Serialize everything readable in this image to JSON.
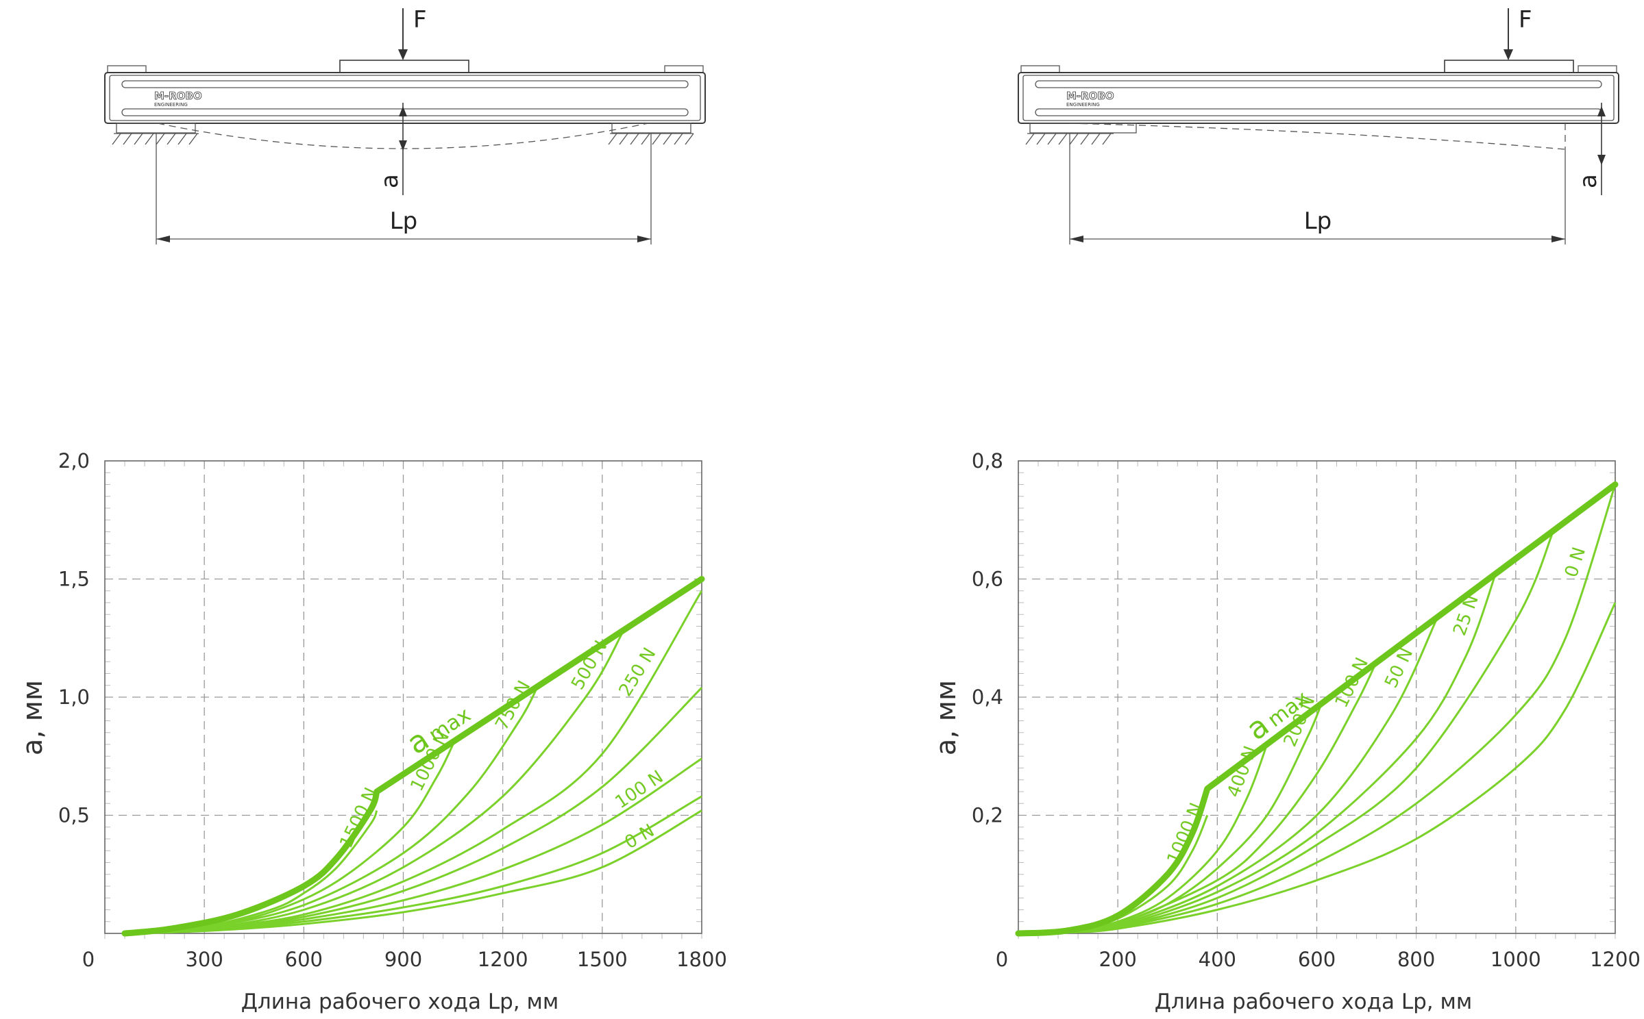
{
  "diagrams": [
    {
      "force_label": "F",
      "deflection_label": "a",
      "span_label": "Lp",
      "logo": "M-ROBO",
      "logo_sub": "ENGINEERING"
    },
    {
      "force_label": "F",
      "deflection_label": "a",
      "span_label": "Lp",
      "logo": "M-ROBO",
      "logo_sub": "ENGINEERING"
    }
  ],
  "colors": {
    "curve": "#7ad12a",
    "envelope": "#6cc61c",
    "grid": "#999999",
    "text": "#333333"
  },
  "chart_data": [
    {
      "type": "line",
      "xlabel": "Длина рабочего хода Lp, мм",
      "ylabel": "a, мм",
      "xlim": [
        0,
        1800
      ],
      "ylim": [
        0,
        2.0
      ],
      "xticks": [
        "0",
        "300",
        "600",
        "900",
        "1200",
        "1500",
        "1800"
      ],
      "yticks": [
        "0,5",
        "1,0",
        "1,5",
        "2,0"
      ],
      "grid": true,
      "envelope": {
        "name_main": "a",
        "name_sub": "max",
        "x": [
          60,
          200,
          400,
          600,
          700,
          800,
          820,
          1800
        ],
        "y": [
          0,
          0.02,
          0.08,
          0.2,
          0.32,
          0.52,
          0.6,
          1.5
        ]
      },
      "series": [
        {
          "name": "1500 N",
          "x": [
            60,
            300,
            500,
            600,
            700,
            800,
            820
          ],
          "y": [
            0,
            0.03,
            0.1,
            0.17,
            0.28,
            0.46,
            0.52
          ]
        },
        {
          "name": "1000 N",
          "x": [
            60,
            300,
            500,
            700,
            900,
            1000,
            1050
          ],
          "y": [
            0,
            0.03,
            0.09,
            0.22,
            0.45,
            0.66,
            0.8
          ]
        },
        {
          "name": "750 N",
          "x": [
            60,
            300,
            600,
            900,
            1100,
            1250,
            1300
          ],
          "y": [
            0,
            0.025,
            0.12,
            0.34,
            0.6,
            0.9,
            1.03
          ]
        },
        {
          "name": "500 N",
          "x": [
            60,
            300,
            600,
            900,
            1200,
            1450,
            1560
          ],
          "y": [
            0,
            0.02,
            0.1,
            0.28,
            0.58,
            1.0,
            1.27
          ]
        },
        {
          "name": "250 N",
          "x": [
            60,
            300,
            600,
            900,
            1200,
            1500,
            1800
          ],
          "y": [
            0,
            0.02,
            0.08,
            0.22,
            0.44,
            0.76,
            1.45
          ]
        },
        {
          "name": "",
          "x": [
            60,
            300,
            600,
            900,
            1200,
            1500,
            1800
          ],
          "y": [
            0,
            0.018,
            0.07,
            0.18,
            0.36,
            0.62,
            1.04
          ]
        },
        {
          "name": "100 N",
          "x": [
            60,
            300,
            600,
            900,
            1200,
            1500,
            1800
          ],
          "y": [
            0,
            0.015,
            0.06,
            0.14,
            0.27,
            0.46,
            0.74
          ]
        },
        {
          "name": "",
          "x": [
            60,
            300,
            600,
            900,
            1200,
            1500,
            1800
          ],
          "y": [
            0,
            0.012,
            0.05,
            0.11,
            0.2,
            0.34,
            0.58
          ]
        },
        {
          "name": "0 N",
          "x": [
            60,
            300,
            600,
            900,
            1200,
            1500,
            1800
          ],
          "y": [
            0,
            0.01,
            0.04,
            0.09,
            0.17,
            0.28,
            0.52
          ]
        }
      ]
    },
    {
      "type": "line",
      "xlabel": "Длина рабочего хода Lp, мм",
      "ylabel": "a, мм",
      "xlim": [
        0,
        1200
      ],
      "ylim": [
        0,
        0.8
      ],
      "xticks": [
        "0",
        "200",
        "400",
        "600",
        "800",
        "1000",
        "1200"
      ],
      "yticks": [
        "0,2",
        "0,4",
        "0,6",
        "0,8"
      ],
      "grid": true,
      "envelope": {
        "name_main": "a",
        "name_sub": "max",
        "x": [
          0,
          100,
          200,
          300,
          350,
          380,
          1200
        ],
        "y": [
          0,
          0.005,
          0.03,
          0.1,
          0.17,
          0.245,
          0.76
        ]
      },
      "series": [
        {
          "name": "1000 N",
          "x": [
            0,
            100,
            200,
            300,
            350,
            380
          ],
          "y": [
            0,
            0.004,
            0.025,
            0.08,
            0.14,
            0.2
          ]
        },
        {
          "name": "400 N",
          "x": [
            0,
            100,
            200,
            300,
            400,
            460,
            500
          ],
          "y": [
            0,
            0.004,
            0.02,
            0.06,
            0.14,
            0.23,
            0.32
          ]
        },
        {
          "name": "200 N",
          "x": [
            0,
            100,
            200,
            300,
            400,
            500,
            580,
            610
          ],
          "y": [
            0,
            0.003,
            0.018,
            0.05,
            0.11,
            0.2,
            0.33,
            0.39
          ]
        },
        {
          "name": "100 N",
          "x": [
            0,
            100,
            200,
            400,
            500,
            600,
            680,
            720
          ],
          "y": [
            0,
            0.003,
            0.016,
            0.09,
            0.16,
            0.27,
            0.39,
            0.46
          ]
        },
        {
          "name": "50 N",
          "x": [
            0,
            100,
            200,
            400,
            600,
            750,
            840
          ],
          "y": [
            0,
            0.003,
            0.014,
            0.08,
            0.2,
            0.37,
            0.53
          ]
        },
        {
          "name": "25 N",
          "x": [
            0,
            100,
            200,
            400,
            600,
            800,
            900,
            960
          ],
          "y": [
            0,
            0.002,
            0.012,
            0.07,
            0.17,
            0.33,
            0.47,
            0.61
          ]
        },
        {
          "name": "",
          "x": [
            0,
            100,
            200,
            400,
            600,
            800,
            1000,
            1075
          ],
          "y": [
            0,
            0.002,
            0.011,
            0.06,
            0.15,
            0.28,
            0.53,
            0.68
          ]
        },
        {
          "name": "0 N",
          "x": [
            0,
            100,
            200,
            400,
            600,
            800,
            1000,
            1100,
            1200
          ],
          "y": [
            0,
            0.002,
            0.01,
            0.05,
            0.12,
            0.22,
            0.37,
            0.5,
            0.76
          ]
        },
        {
          "name": "",
          "x": [
            0,
            100,
            200,
            400,
            600,
            800,
            1000,
            1100,
            1200
          ],
          "y": [
            0,
            0.0015,
            0.008,
            0.04,
            0.09,
            0.16,
            0.28,
            0.38,
            0.56
          ]
        }
      ]
    }
  ]
}
